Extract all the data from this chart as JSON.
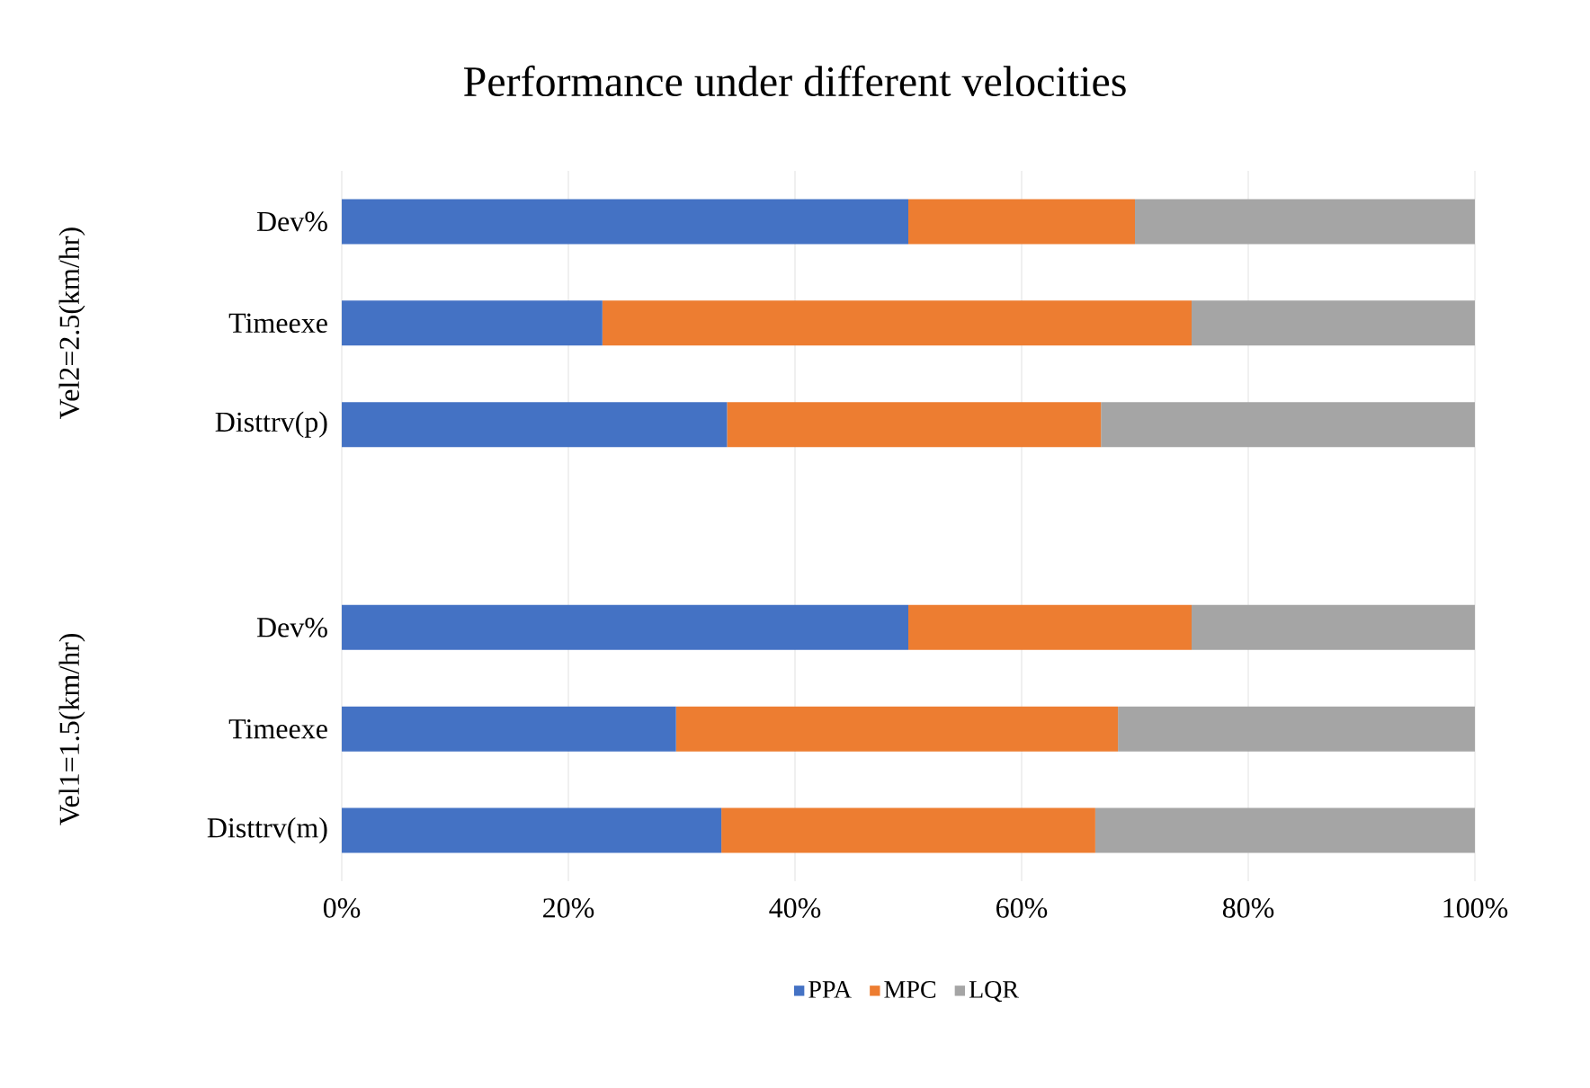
{
  "chart_data": {
    "type": "bar",
    "orientation": "horizontal",
    "stacked": true,
    "title": "Performance under different velocities",
    "categories": [
      "Dev%",
      "Timeexe",
      "Disttrv(p)",
      null,
      "Dev%",
      "Timeexe",
      "Disttrv(m)"
    ],
    "series": [
      {
        "name": "PPA",
        "color": "#4472c4",
        "values": [
          50,
          23,
          34,
          null,
          50,
          29.5,
          33.5
        ]
      },
      {
        "name": "MPC",
        "color": "#ed7d31",
        "values": [
          20,
          52,
          33,
          null,
          25,
          39,
          33
        ]
      },
      {
        "name": "LQR",
        "color": "#a5a5a5",
        "values": [
          30,
          25,
          33,
          null,
          25,
          31.5,
          33.5
        ]
      }
    ],
    "xlim": [
      0,
      100
    ],
    "xticks": [
      {
        "value": 0,
        "label": "0%"
      },
      {
        "value": 20,
        "label": "20%"
      },
      {
        "value": 40,
        "label": "40%"
      },
      {
        "value": 60,
        "label": "60%"
      },
      {
        "value": 80,
        "label": "80%"
      },
      {
        "value": 100,
        "label": "100%"
      }
    ],
    "annotations": [
      "Vel2=2.5(km/hr)",
      "Vel1=1.5(km/hr)"
    ],
    "grid": "x",
    "legend": "bottom"
  }
}
